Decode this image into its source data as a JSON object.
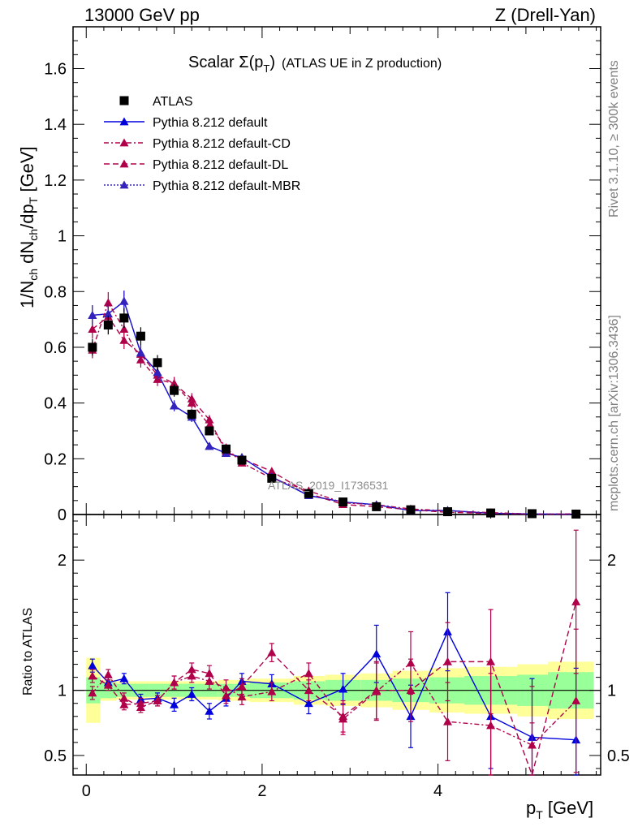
{
  "header": {
    "left_label": "13000 GeV pp",
    "right_label": "Z (Drell-Yan)"
  },
  "side_labels": {
    "upper": "Rivet 3.1.10, ≥ 300k events",
    "lower": "mcplots.cern.ch [arXiv:1306.3436]"
  },
  "chart_data": {
    "type": "scatter",
    "title_main": "Scalar Σ(p",
    "title_sub": "T",
    "title_end": ")",
    "title_note": "(ATLAS UE in Z production)",
    "watermark": "ATLAS_2019_I1736531",
    "ylabel": {
      "part1": "1/N",
      "sub1": "ch",
      "part2": " dN",
      "sub2": "ch",
      "part3": "/dp",
      "sub3": "T",
      "part4": " [GeV]"
    },
    "xlabel": {
      "part1": "p",
      "sub": "T",
      "part2": " [GeV]"
    },
    "ratio_ylabel": "Ratio to ATLAS",
    "xlim": [
      -0.15,
      5.85
    ],
    "ylim_main": [
      0,
      1.75
    ],
    "ylim_ratio": [
      0.35,
      2.35
    ],
    "x_ticks": [
      0,
      2,
      4
    ],
    "x_tick_labels": [
      "0",
      "2",
      "4"
    ],
    "y_ticks_main": [
      0,
      0.2,
      0.4,
      0.6,
      0.8,
      1,
      1.2,
      1.4,
      1.6
    ],
    "y_tick_labels_main": [
      "0",
      "0.2",
      "0.4",
      "0.6",
      "0.8",
      "1",
      "1.2",
      "1.4",
      "1.6"
    ],
    "y_ticks_ratio": [
      0.5,
      1,
      2
    ],
    "y_tick_labels_ratio": [
      "0.5",
      "1",
      "2"
    ],
    "x": [
      0.07,
      0.25,
      0.43,
      0.62,
      0.81,
      1.0,
      1.2,
      1.4,
      1.59,
      1.77,
      2.11,
      2.53,
      2.92,
      3.3,
      3.69,
      4.11,
      4.6,
      5.07,
      5.57
    ],
    "series": [
      {
        "name": "ATLAS",
        "marker": "square",
        "color": "#000000",
        "dash": "",
        "values": [
          0.6,
          0.68,
          0.705,
          0.64,
          0.545,
          0.445,
          0.36,
          0.3,
          0.235,
          0.195,
          0.13,
          0.075,
          0.045,
          0.028,
          0.017,
          0.01,
          0.0055,
          0.003,
          0.0015
        ]
      },
      {
        "name": "Pythia 8.212 default",
        "marker": "triangle",
        "color": "#0000dd",
        "dash": "",
        "values": [
          0.715,
          0.72,
          0.765,
          0.58,
          0.51,
          0.39,
          0.35,
          0.245,
          0.22,
          0.205,
          0.135,
          0.068,
          0.045,
          0.035,
          0.014,
          0.0145,
          0.0045,
          0.002,
          0.001
        ]
      },
      {
        "name": "Pythia 8.212 default-CD",
        "marker": "triangle",
        "color": "#b0004a",
        "dash": "6,3,2,3",
        "values": [
          0.59,
          0.76,
          0.665,
          0.555,
          0.485,
          0.47,
          0.4,
          0.32,
          0.24,
          0.185,
          0.13,
          0.085,
          0.042,
          0.035,
          0.02,
          0.013,
          0.0068,
          0.0018,
          0.0008
        ]
      },
      {
        "name": "Pythia 8.212 default-DL",
        "marker": "triangle",
        "color": "#b0004a",
        "dash": "7,4",
        "values": [
          0.665,
          0.71,
          0.625,
          0.575,
          0.5,
          0.47,
          0.415,
          0.34,
          0.225,
          0.2,
          0.155,
          0.075,
          0.036,
          0.028,
          0.017,
          0.0078,
          0.0042,
          0.001,
          0.0025
        ]
      },
      {
        "name": "Pythia 8.212 default-MBR",
        "marker": "triangle",
        "color": "#3322bb",
        "dash": "2,2",
        "values": [
          0.715,
          0.72,
          0.765,
          0.58,
          0.51,
          0.39,
          0.35,
          0.245,
          0.22,
          0.205,
          0.135,
          0.068,
          0.045,
          0.035,
          0.014,
          0.0145,
          0.0045,
          0.002,
          0.001
        ]
      }
    ],
    "ratios": [
      {
        "name": "Pythia 8.212 default",
        "color": "#0000dd",
        "dash": "",
        "values": [
          1.19,
          1.06,
          1.09,
          0.93,
          0.94,
          0.89,
          0.97,
          0.84,
          0.94,
          1.07,
          1.05,
          0.9,
          1.01,
          1.28,
          0.8,
          1.45,
          0.8,
          0.64,
          0.62
        ],
        "errors": [
          0.05,
          0.04,
          0.04,
          0.04,
          0.04,
          0.05,
          0.05,
          0.06,
          0.06,
          0.06,
          0.07,
          0.08,
          0.12,
          0.22,
          0.24,
          0.3,
          0.4,
          0.45,
          0.55
        ]
      },
      {
        "name": "Pythia 8.212 default-CD",
        "color": "#b0004a",
        "dash": "6,3,2,3",
        "values": [
          0.98,
          1.12,
          0.94,
          0.87,
          0.92,
          1.06,
          1.11,
          1.07,
          1.02,
          0.95,
          0.99,
          1.13,
          0.78,
          0.99,
          1.21,
          0.76,
          0.73,
          0.58,
          0.92
        ],
        "errors": [
          0.05,
          0.04,
          0.04,
          0.04,
          0.04,
          0.05,
          0.05,
          0.06,
          0.06,
          0.06,
          0.07,
          0.08,
          0.12,
          0.22,
          0.24,
          0.3,
          0.4,
          0.45,
          0.55
        ]
      },
      {
        "name": "Pythia 8.212 default-DL",
        "color": "#b0004a",
        "dash": "7,4",
        "values": [
          1.11,
          1.04,
          0.89,
          0.9,
          0.92,
          1.06,
          1.16,
          1.13,
          0.96,
          1.03,
          1.29,
          1.0,
          0.8,
          1.0,
          1.0,
          1.22,
          1.22,
          0.3,
          1.68
        ],
        "errors": [
          0.05,
          0.04,
          0.04,
          0.04,
          0.04,
          0.05,
          0.05,
          0.06,
          0.06,
          0.06,
          0.07,
          0.08,
          0.12,
          0.22,
          0.24,
          0.3,
          0.4,
          0.45,
          0.55
        ]
      }
    ],
    "bands": {
      "edges": [
        0.0,
        0.16,
        0.34,
        0.52,
        0.71,
        0.9,
        1.1,
        1.3,
        1.5,
        1.68,
        1.86,
        2.36,
        2.72,
        3.12,
        3.48,
        3.9,
        4.3,
        4.9,
        5.25,
        5.77
      ],
      "inner": [
        0.1,
        0.06,
        0.05,
        0.05,
        0.05,
        0.05,
        0.05,
        0.05,
        0.05,
        0.05,
        0.06,
        0.07,
        0.08,
        0.08,
        0.09,
        0.1,
        0.11,
        0.12,
        0.14
      ],
      "outer": [
        0.25,
        0.08,
        0.07,
        0.07,
        0.07,
        0.07,
        0.07,
        0.07,
        0.08,
        0.08,
        0.09,
        0.11,
        0.12,
        0.13,
        0.15,
        0.17,
        0.18,
        0.2,
        0.22
      ],
      "inner_color": "#99ff99",
      "outer_color": "#ffff99"
    }
  }
}
